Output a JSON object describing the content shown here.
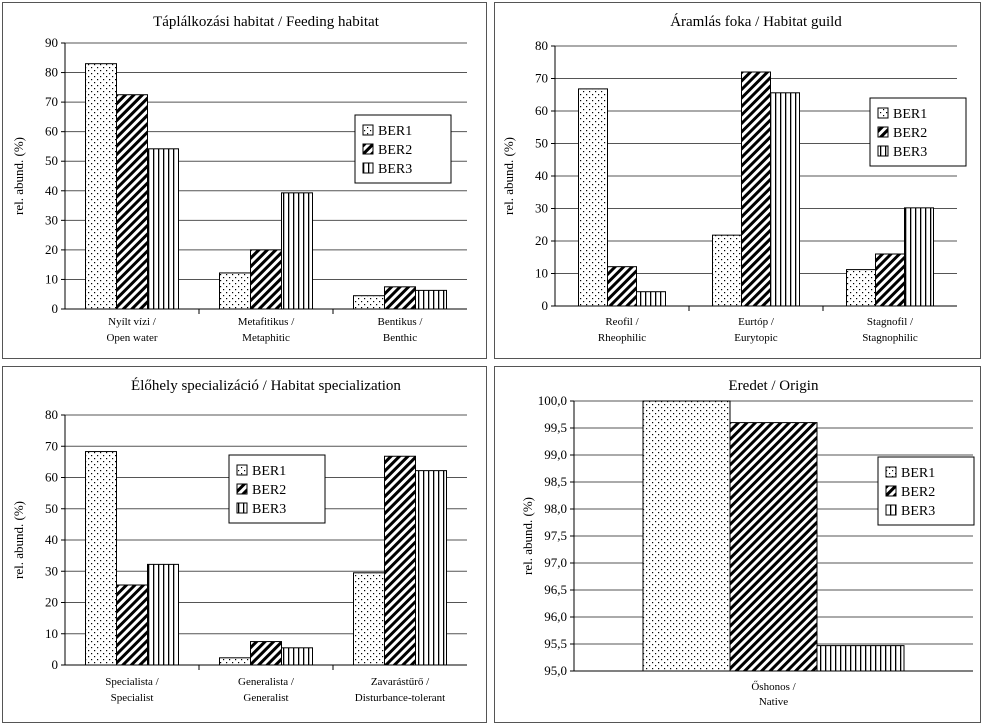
{
  "legend": [
    "BER1",
    "BER2",
    "BER3"
  ],
  "chart_data": [
    {
      "type": "bar",
      "title": "Táplálkozási habitat / Feeding habitat",
      "ylabel": "rel. abund. (%)",
      "categories": [
        [
          "Nyílt vízi /",
          "Open water"
        ],
        [
          "Metafitikus /",
          "Metaphitic"
        ],
        [
          "Bentikus /",
          "Benthic"
        ]
      ],
      "ylim": [
        0,
        90
      ],
      "yticks": [
        "0",
        "10",
        "20",
        "30",
        "40",
        "50",
        "60",
        "70",
        "80",
        "90"
      ],
      "series": [
        {
          "name": "BER1",
          "values": [
            83,
            12.2,
            4.5
          ]
        },
        {
          "name": "BER2",
          "values": [
            72.5,
            20,
            7.5
          ]
        },
        {
          "name": "BER3",
          "values": [
            54.2,
            39.3,
            6.3
          ]
        }
      ],
      "legend_position": "right"
    },
    {
      "type": "bar",
      "title": "Áramlás foka / Habitat guild",
      "ylabel": "rel. abund. (%)",
      "categories": [
        [
          "Reofil /",
          "Rheophilic"
        ],
        [
          "Eurtóp /",
          "Eurytopic"
        ],
        [
          "Stagnofil /",
          "Stagnophilic"
        ]
      ],
      "ylim": [
        0,
        80
      ],
      "yticks": [
        "0",
        "10",
        "20",
        "30",
        "40",
        "50",
        "60",
        "70",
        "80"
      ],
      "series": [
        {
          "name": "BER1",
          "values": [
            66.8,
            21.8,
            11.2
          ]
        },
        {
          "name": "BER2",
          "values": [
            12.1,
            72,
            16
          ]
        },
        {
          "name": "BER3",
          "values": [
            4.4,
            65.6,
            30.2
          ]
        }
      ],
      "legend_position": "right"
    },
    {
      "type": "bar",
      "title": "Élőhely specializáció / Habitat specialization",
      "ylabel": "rel. abund. (%)",
      "categories": [
        [
          "Specialista /",
          "Specialist"
        ],
        [
          "Generalista /",
          "Generalist"
        ],
        [
          "Zavarástűrő /",
          "Disturbance-tolerant"
        ]
      ],
      "ylim": [
        0,
        80
      ],
      "yticks": [
        "0",
        "10",
        "20",
        "30",
        "40",
        "50",
        "60",
        "70",
        "80"
      ],
      "series": [
        {
          "name": "BER1",
          "values": [
            68.3,
            2.3,
            29.5
          ]
        },
        {
          "name": "BER2",
          "values": [
            25.6,
            7.5,
            66.8
          ]
        },
        {
          "name": "BER3",
          "values": [
            32.2,
            5.5,
            62.2
          ]
        }
      ],
      "legend_position": "top-right"
    },
    {
      "type": "bar",
      "title": "Eredet / Origin",
      "ylabel": "rel. abund. (%)",
      "categories": [
        [
          "Őshonos /",
          "Native"
        ]
      ],
      "ylim": [
        95,
        100
      ],
      "yticks": [
        "95,0",
        "95,5",
        "96,0",
        "96,5",
        "97,0",
        "97,5",
        "98,0",
        "98,5",
        "99,0",
        "99,5",
        "100,0"
      ],
      "series": [
        {
          "name": "BER1",
          "values": [
            100
          ]
        },
        {
          "name": "BER2",
          "values": [
            99.6
          ]
        },
        {
          "name": "BER3",
          "values": [
            95.47
          ]
        }
      ],
      "legend_position": "right"
    }
  ]
}
